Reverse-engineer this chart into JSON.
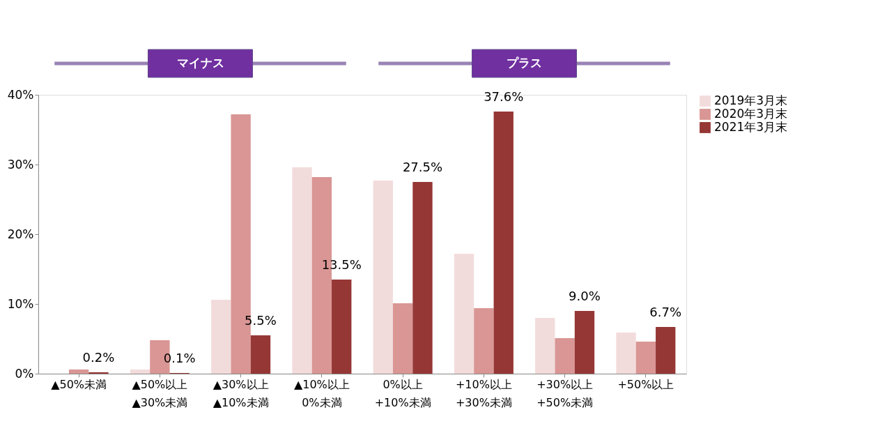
{
  "chart_data": {
    "type": "bar",
    "categories": [
      "▲50%未満",
      "▲50%以上\n▲30%未満",
      "▲30%以上\n▲10%未満",
      "▲10%以上\n0%未満",
      "0%以上\n+10%未満",
      "+10%以上\n+30%未満",
      "+30%以上\n+50%未満",
      "+50%以上"
    ],
    "series": [
      {
        "name": "2019年3月末",
        "color": "#f2dcdb",
        "values": [
          null,
          0.6,
          10.6,
          29.6,
          27.7,
          17.2,
          8.0,
          5.9
        ]
      },
      {
        "name": "2020年3月末",
        "color": "#d99694",
        "values": [
          0.6,
          4.8,
          37.2,
          28.2,
          10.1,
          9.4,
          5.1,
          4.6
        ]
      },
      {
        "name": "2021年3月末",
        "color": "#953735",
        "values": [
          0.2,
          0.1,
          5.5,
          13.5,
          27.5,
          37.6,
          9.0,
          6.7
        ],
        "value_labels": [
          "0.2%",
          "0.1%",
          "5.5%",
          "13.5%",
          "27.5%",
          "37.6%",
          "9.0%",
          "6.7%"
        ]
      }
    ],
    "ylim": [
      0,
      40
    ],
    "yticks": [
      {
        "value": 0,
        "label": "0%"
      },
      {
        "value": 10,
        "label": "10%"
      },
      {
        "value": 20,
        "label": "20%"
      },
      {
        "value": 30,
        "label": "30%"
      },
      {
        "value": 40,
        "label": "40%"
      }
    ],
    "grid": false,
    "legend": "right",
    "annotations": [
      "マイナス",
      "プラス"
    ]
  }
}
